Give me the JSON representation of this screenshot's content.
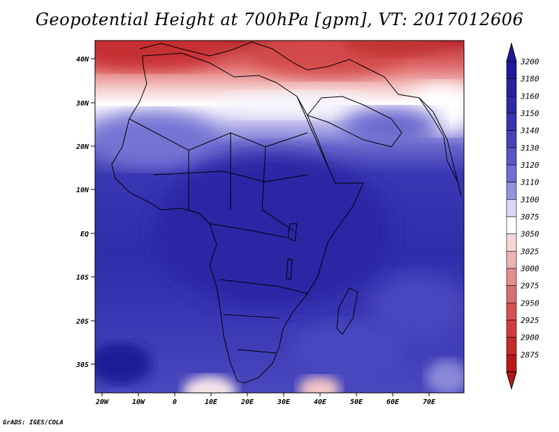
{
  "title": "Geopotential Height at 700hPa [gpm], VT: 2017012606",
  "footer": "GrADS: IGES/COLA",
  "map": {
    "lat_labels": [
      "40N",
      "30N",
      "20N",
      "10N",
      "EQ",
      "10S",
      "20S",
      "30S"
    ],
    "lon_labels": [
      "20W",
      "10W",
      "0",
      "10E",
      "20E",
      "30E",
      "40E",
      "50E",
      "60E",
      "70E"
    ]
  },
  "colorbar": {
    "levels": [
      "3200",
      "3180",
      "3160",
      "3150",
      "3140",
      "3130",
      "3120",
      "3110",
      "3100",
      "3075",
      "3050",
      "3025",
      "3000",
      "2975",
      "2950",
      "2925",
      "2900",
      "2875"
    ],
    "colors": [
      "#1e1a9c",
      "#27239f",
      "#2c2aa6",
      "#3634b0",
      "#4443b9",
      "#5756c6",
      "#6f6ed2",
      "#9392df",
      "#d9dbf4",
      "#ffffff",
      "#f4d6d6",
      "#ebb3b3",
      "#e08e8e",
      "#d96f6f",
      "#d65252",
      "#d03c3c",
      "#c42a2a",
      "#b81818"
    ]
  },
  "colors": {
    "ocean_deep": "#3534b5",
    "land_interior": "#2a28a6",
    "warm_high": "#d84646",
    "neutral": "#ffffff"
  }
}
